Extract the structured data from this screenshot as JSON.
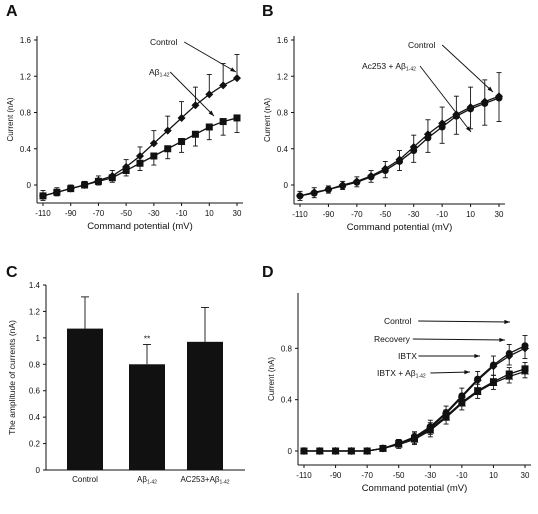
{
  "chart_data": [
    {
      "panel": "A",
      "type": "line",
      "xlabel": "Command potential (mV)",
      "ylabel": "Current (nA)",
      "xlim": [
        -110,
        30
      ],
      "ylim": [
        0,
        1.6
      ],
      "xticks": [
        "-110",
        "-90",
        "-70",
        "-50",
        "-30",
        "-10",
        "10",
        "30"
      ],
      "yticks": [
        "0",
        "0.4",
        "0.8",
        "1.2",
        "1.6"
      ],
      "x": [
        -110,
        -100,
        -90,
        -80,
        -70,
        -60,
        -50,
        -40,
        -30,
        -20,
        -10,
        0,
        10,
        20,
        30
      ],
      "annotations": [
        {
          "text": "Control",
          "series": 0
        },
        {
          "text": "Aβ",
          "sub": "1-42",
          "series": 1
        }
      ],
      "series": [
        {
          "name": "Control",
          "marker": "diamond",
          "values": [
            -0.12,
            -0.08,
            -0.04,
            0.0,
            0.05,
            0.1,
            0.2,
            0.32,
            0.46,
            0.6,
            0.74,
            0.88,
            1.0,
            1.1,
            1.18
          ],
          "errors": [
            0.06,
            0.05,
            0.04,
            0.04,
            0.05,
            0.06,
            0.08,
            0.1,
            0.14,
            0.16,
            0.18,
            0.2,
            0.22,
            0.24,
            0.26
          ]
        },
        {
          "name": "Aβ1-42",
          "marker": "square",
          "values": [
            -0.12,
            -0.08,
            -0.04,
            0.0,
            0.04,
            0.08,
            0.16,
            0.24,
            0.32,
            0.4,
            0.48,
            0.56,
            0.64,
            0.7,
            0.74
          ],
          "errors": [
            0.05,
            0.04,
            0.03,
            0.03,
            0.04,
            0.05,
            0.06,
            0.08,
            0.1,
            0.11,
            0.12,
            0.13,
            0.14,
            0.15,
            0.16
          ]
        }
      ]
    },
    {
      "panel": "B",
      "type": "line",
      "xlabel": "Command potential (mV)",
      "ylabel": "Current (nA)",
      "xlim": [
        -110,
        30
      ],
      "ylim": [
        0,
        1.6
      ],
      "xticks": [
        "-110",
        "-90",
        "-70",
        "-50",
        "-30",
        "-10",
        "10",
        "30"
      ],
      "yticks": [
        "0",
        "0.4",
        "0.8",
        "1.2",
        "1.6"
      ],
      "x": [
        -110,
        -100,
        -90,
        -80,
        -70,
        -60,
        -50,
        -40,
        -30,
        -20,
        -10,
        0,
        10,
        20,
        30
      ],
      "annotations": [
        {
          "text": "Control",
          "series": 0
        },
        {
          "text": "Ac253 + Aβ",
          "sub": "1-42",
          "series": 1
        }
      ],
      "series": [
        {
          "name": "Control",
          "marker": "diamond",
          "values": [
            -0.12,
            -0.08,
            -0.05,
            0.0,
            0.04,
            0.1,
            0.18,
            0.28,
            0.42,
            0.56,
            0.68,
            0.78,
            0.86,
            0.92,
            0.98
          ],
          "errors": [
            0.05,
            0.05,
            0.04,
            0.04,
            0.05,
            0.06,
            0.08,
            0.1,
            0.13,
            0.16,
            0.18,
            0.2,
            0.22,
            0.24,
            0.26
          ]
        },
        {
          "name": "Ac253 + Aβ1-42",
          "marker": "circle",
          "values": [
            -0.12,
            -0.09,
            -0.05,
            -0.01,
            0.03,
            0.09,
            0.16,
            0.26,
            0.38,
            0.52,
            0.64,
            0.76,
            0.84,
            0.9,
            0.96
          ],
          "errors": [
            0.05,
            0.05,
            0.04,
            0.04,
            0.05,
            0.06,
            0.08,
            0.1,
            0.13,
            0.16,
            0.18,
            0.2,
            0.22,
            0.24,
            0.26
          ]
        }
      ]
    },
    {
      "panel": "C",
      "type": "bar",
      "ylabel": "The amplitude of currents (nA)",
      "ylim": [
        0,
        1.4
      ],
      "yticks": [
        "0",
        "0.2",
        "0.4",
        "0.6",
        "0.8",
        "1",
        "1.2",
        "1.4"
      ],
      "categories": [
        "Control",
        "Aβ1-42",
        "AC253+Aβ1-42"
      ],
      "category_labels": [
        {
          "text": "Control",
          "sub": ""
        },
        {
          "text": "Aβ",
          "sub": "1-42"
        },
        {
          "text": "AC253+Aβ",
          "sub": "1-42"
        }
      ],
      "values": [
        1.07,
        0.8,
        0.97
      ],
      "errors": [
        0.24,
        0.15,
        0.26
      ],
      "significance": [
        "",
        "**",
        ""
      ]
    },
    {
      "panel": "D",
      "type": "line",
      "xlabel": "Command potential (mV)",
      "ylabel": "Current (nA)",
      "xlim": [
        -110,
        30
      ],
      "ylim": [
        0,
        1.2
      ],
      "xticks": [
        "-110",
        "-90",
        "-70",
        "-50",
        "-30",
        "-10",
        "10",
        "30"
      ],
      "yticks": [
        "0",
        "0.4",
        "0.8"
      ],
      "x": [
        -110,
        -100,
        -90,
        -80,
        -70,
        -60,
        -50,
        -40,
        -30,
        -20,
        -10,
        0,
        10,
        20,
        30
      ],
      "annotations": [
        {
          "text": "Control",
          "series": 0
        },
        {
          "text": "Recovery",
          "series": 1
        },
        {
          "text": "IBTX",
          "series": 2
        },
        {
          "text": "IBTX + Aβ",
          "sub": "1-42",
          "series": 3
        }
      ],
      "series": [
        {
          "name": "Control",
          "marker": "circle",
          "values": [
            0,
            0,
            0,
            0,
            0,
            0.02,
            0.06,
            0.11,
            0.19,
            0.3,
            0.43,
            0.56,
            0.67,
            0.76,
            0.82
          ],
          "errors": [
            0,
            0,
            0,
            0,
            0.01,
            0.02,
            0.03,
            0.04,
            0.05,
            0.05,
            0.06,
            0.06,
            0.07,
            0.07,
            0.08
          ]
        },
        {
          "name": "Recovery",
          "marker": "diamond",
          "values": [
            0,
            0,
            0,
            0,
            0,
            0.02,
            0.06,
            0.1,
            0.18,
            0.29,
            0.42,
            0.55,
            0.66,
            0.74,
            0.8
          ],
          "errors": [
            0,
            0,
            0,
            0,
            0.01,
            0.02,
            0.03,
            0.04,
            0.05,
            0.05,
            0.06,
            0.06,
            0.07,
            0.07,
            0.08
          ]
        },
        {
          "name": "IBTX",
          "marker": "square",
          "values": [
            0,
            0,
            0,
            0,
            0,
            0.02,
            0.06,
            0.1,
            0.17,
            0.27,
            0.38,
            0.47,
            0.54,
            0.6,
            0.64
          ],
          "errors": [
            0,
            0,
            0,
            0,
            0.01,
            0.02,
            0.03,
            0.04,
            0.05,
            0.05,
            0.05,
            0.05,
            0.05,
            0.05,
            0.05
          ]
        },
        {
          "name": "IBTX + Aβ1-42",
          "marker": "triangle",
          "values": [
            0,
            0,
            0,
            0,
            0,
            0.02,
            0.05,
            0.09,
            0.16,
            0.26,
            0.37,
            0.46,
            0.53,
            0.58,
            0.62
          ],
          "errors": [
            0,
            0,
            0,
            0,
            0.01,
            0.02,
            0.03,
            0.04,
            0.05,
            0.05,
            0.05,
            0.05,
            0.05,
            0.05,
            0.05
          ]
        }
      ]
    }
  ]
}
